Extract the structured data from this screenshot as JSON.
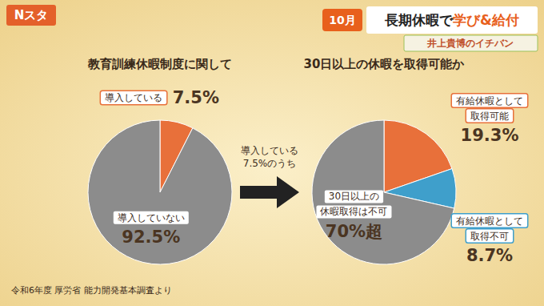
{
  "header": {
    "logo": "Nスタ",
    "month": "10月",
    "title": [
      "長期休暇で",
      "学び&給付"
    ],
    "subtitle": "井上貴博のイチバン"
  },
  "chart_data": [
    {
      "type": "pie",
      "title": "教育訓練休暇制度に関して",
      "categories": [
        "導入している",
        "導入していない"
      ],
      "values": [
        7.5,
        92.5
      ],
      "value_labels": [
        "7.5%",
        "92.5%"
      ],
      "colors": [
        "#e8703a",
        "#8c8c8c"
      ],
      "data_labels": true
    },
    {
      "type": "pie",
      "title": "30日以上の休暇を取得可能か",
      "categories": [
        "有給休暇として\n取得可能",
        "有給休暇として\n取得不可",
        "30日以上の\n休暇取得は不可"
      ],
      "values": [
        19.3,
        8.7,
        70
      ],
      "value_labels": [
        "19.3%",
        "8.7%",
        "70%超"
      ],
      "colors": [
        "#e8703a",
        "#3f9fcb",
        "#8c8c8c"
      ],
      "data_labels": true
    }
  ],
  "arrow_text": "導入している\n7.5%のうち",
  "source": "令和6年度 厚労省 能力開発基本調査より"
}
